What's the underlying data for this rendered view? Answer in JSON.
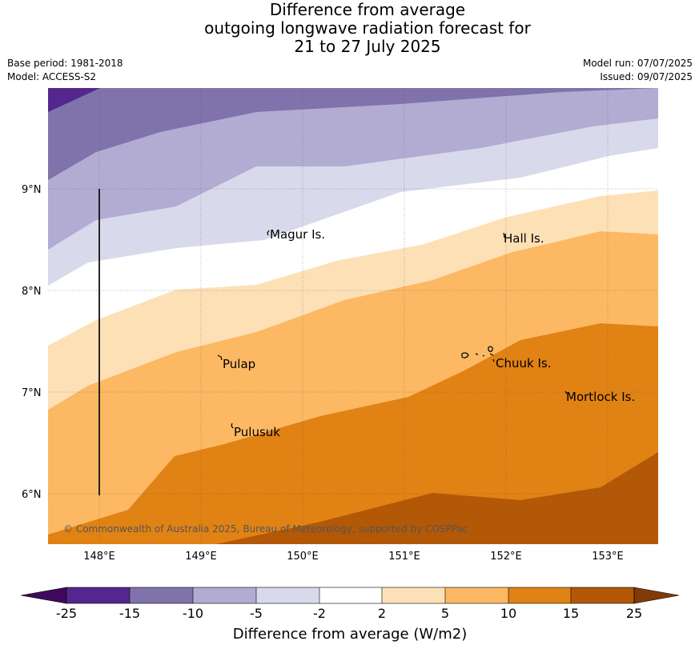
{
  "title": {
    "line1": "Difference from average",
    "line2": "outgoing longwave radiation forecast for",
    "line3": "21 to 27 July 2025"
  },
  "meta": {
    "base_period": "Base period: 1981-2018",
    "model": "Model: ACCESS-S2",
    "model_run": "Model run: 07/07/2025",
    "issued": "Issued: 09/07/2025"
  },
  "map": {
    "lat_ticks": [
      "9°N",
      "8°N",
      "7°N",
      "6°N"
    ],
    "lon_ticks": [
      "148°E",
      "149°E",
      "150°E",
      "151°E",
      "152°E",
      "153°E"
    ],
    "places": [
      "Magur Is.",
      "Hall Is.",
      "Pulap",
      "Chuuk Is.",
      "Mortlock Is.",
      "Pulusuk"
    ],
    "copyright": "© Commonwealth of Australia 2025, Bureau of Meteorology, supported by COSPPac",
    "colors": {
      "lt_minus25": "#3f0a5e",
      "minus25_minus15": "#54278f",
      "minus15_minus10": "#8073ac",
      "minus10_minus5": "#b2abd2",
      "minus5_minus2": "#d8daeb",
      "minus2_2": "#ffffff",
      "2_5": "#fee0b6",
      "5_10": "#fdb863",
      "10_15": "#e08214",
      "15_25": "#b35806",
      "gt_25": "#7f3b08"
    }
  },
  "colorbar": {
    "labels": [
      "-25",
      "-15",
      "-10",
      "-5",
      "-2",
      "2",
      "5",
      "10",
      "15",
      "25"
    ],
    "title": "Difference from average (W/m2)"
  }
}
